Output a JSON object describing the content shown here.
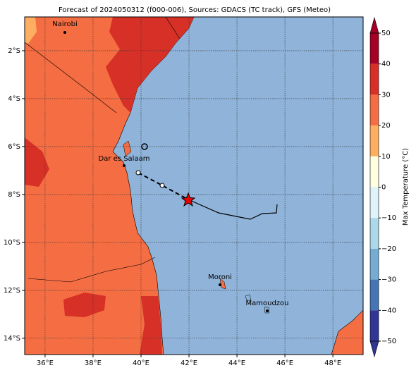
{
  "title": "Forecast of 2024050312 (f000-006), Sources: GDACS (TC track), GFS (Meteo)",
  "map": {
    "xlim": [
      35.15,
      49.26
    ],
    "ylim": [
      -14.68,
      -0.59
    ],
    "xticks": [
      {
        "value": 36,
        "label": "36°E"
      },
      {
        "value": 38,
        "label": "38°E"
      },
      {
        "value": 40,
        "label": "40°E"
      },
      {
        "value": 42,
        "label": "42°E"
      },
      {
        "value": 44,
        "label": "44°E"
      },
      {
        "value": 46,
        "label": "46°E"
      },
      {
        "value": 48,
        "label": "48°E"
      }
    ],
    "yticks": [
      {
        "value": -2,
        "label": "2°S"
      },
      {
        "value": -4,
        "label": "4°S"
      },
      {
        "value": -6,
        "label": "6°S"
      },
      {
        "value": -8,
        "label": "8°S"
      },
      {
        "value": -10,
        "label": "10°S"
      },
      {
        "value": -12,
        "label": "12°S"
      },
      {
        "value": -14,
        "label": "14°S"
      }
    ],
    "grid": true,
    "cities": [
      "Nairobi",
      "Dar es Salaam",
      "Moroni",
      "Mamoudzou"
    ]
  },
  "colorbar": {
    "label": "Max Temperature (°C)",
    "lim": [
      -50,
      50
    ],
    "ticks": [
      {
        "value": 50,
        "label": "50"
      },
      {
        "value": 40,
        "label": "40"
      },
      {
        "value": 30,
        "label": "30"
      },
      {
        "value": 20,
        "label": "20"
      },
      {
        "value": 10,
        "label": "10"
      },
      {
        "value": 0,
        "label": "0"
      },
      {
        "value": -10,
        "label": "−10"
      },
      {
        "value": -20,
        "label": "−20"
      },
      {
        "value": -30,
        "label": "−30"
      },
      {
        "value": -40,
        "label": "−40"
      },
      {
        "value": -50,
        "label": "−50"
      }
    ],
    "colors": [
      "#a50026",
      "#d73027",
      "#f46d43",
      "#fdae61",
      "#fefee0",
      "#e0f3f8",
      "#abd9e9",
      "#74add1",
      "#4575b4",
      "#313695"
    ]
  }
}
